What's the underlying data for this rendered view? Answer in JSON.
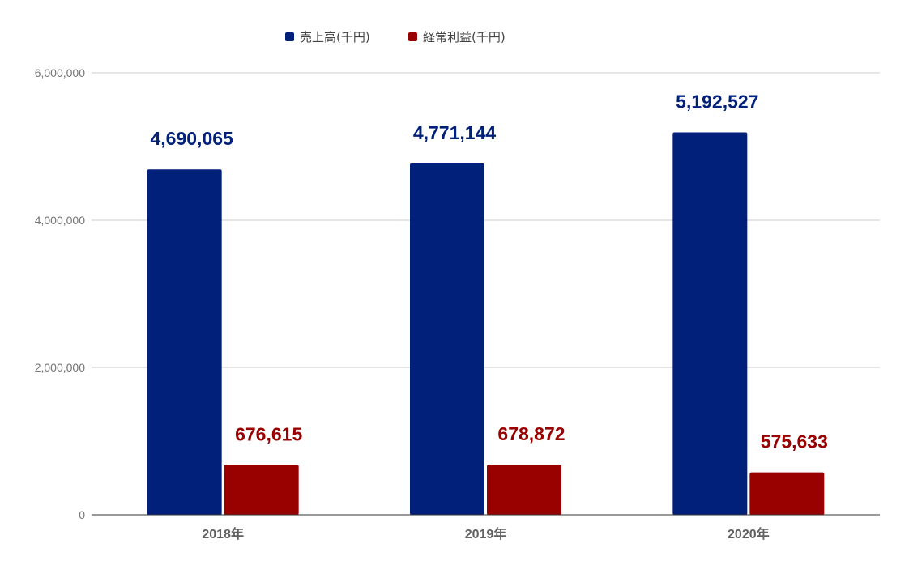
{
  "chart_data": {
    "type": "bar",
    "categories": [
      "2018年",
      "2019年",
      "2020年"
    ],
    "series": [
      {
        "name": "売上高(千円)",
        "values": [
          4690065,
          4771144,
          5192527
        ],
        "labels": [
          "4,690,065",
          "4,771,144",
          "5,192,527"
        ],
        "color": "#00207a"
      },
      {
        "name": "経常利益(千円)",
        "values": [
          676615,
          678872,
          575633
        ],
        "labels": [
          "676,615",
          "678,872",
          "575,633"
        ],
        "color": "#990000"
      }
    ],
    "ylim": [
      0,
      6000000
    ],
    "yticks": [
      0,
      2000000,
      4000000,
      6000000
    ],
    "ytick_labels": [
      "0",
      "2,000,000",
      "4,000,000",
      "6,000,000"
    ],
    "grid": true,
    "legend_position": "top",
    "axis_color": "#333333",
    "grid_color": "#cccccc"
  }
}
